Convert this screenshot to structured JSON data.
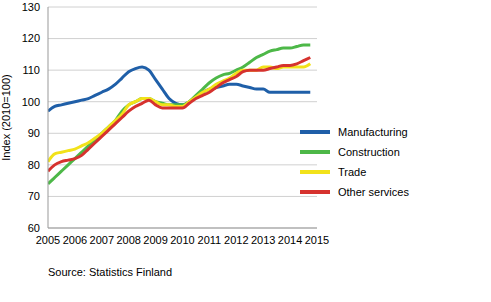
{
  "chart_data": {
    "type": "line",
    "y_label": "Index (2010=100)",
    "source": "Source: Statistics Finland",
    "x": [
      2005,
      2005.25,
      2005.5,
      2005.75,
      2006,
      2006.25,
      2006.5,
      2006.75,
      2007,
      2007.25,
      2007.5,
      2007.75,
      2008,
      2008.25,
      2008.5,
      2008.75,
      2009,
      2009.25,
      2009.5,
      2009.75,
      2010,
      2010.25,
      2010.5,
      2010.75,
      2011,
      2011.25,
      2011.5,
      2011.75,
      2012,
      2012.25,
      2012.5,
      2012.75,
      2013,
      2013.25,
      2013.5,
      2013.75,
      2014,
      2014.25,
      2014.5,
      2014.75
    ],
    "xlim": [
      2005,
      2015
    ],
    "xticks": [
      2005,
      2006,
      2007,
      2008,
      2009,
      2010,
      2011,
      2012,
      2013,
      2014,
      2015
    ],
    "ylim": [
      60,
      130
    ],
    "yticks": [
      60,
      70,
      80,
      90,
      100,
      110,
      120,
      130
    ],
    "grid": true,
    "legend": "right",
    "series": [
      {
        "name": "Manufacturing",
        "color": "#1f5fa8",
        "values": [
          97,
          98.5,
          99,
          99.5,
          100,
          100.5,
          101,
          102,
          103,
          104,
          105.5,
          107.5,
          109.5,
          110.5,
          111,
          110,
          107,
          104,
          101,
          99.5,
          99,
          100,
          101.5,
          103,
          104,
          104.5,
          105,
          105.5,
          105.5,
          105,
          104.5,
          104,
          104,
          103,
          103,
          103,
          103,
          103,
          103,
          103
        ]
      },
      {
        "name": "Construction",
        "color": "#4db848",
        "values": [
          74,
          76,
          78,
          80,
          82,
          84,
          86,
          88,
          90,
          92,
          94,
          97,
          99,
          100,
          101,
          101,
          100,
          99.5,
          99,
          99,
          99,
          100,
          102,
          104,
          106,
          107.5,
          108.5,
          109,
          110,
          111,
          112.5,
          114,
          115,
          116,
          116.5,
          117,
          117,
          117.5,
          118,
          118
        ]
      },
      {
        "name": "Trade",
        "color": "#f2e21a",
        "values": [
          81,
          83.5,
          84,
          84.5,
          85,
          86,
          87,
          88.5,
          90,
          92,
          94,
          96,
          99,
          100,
          101,
          101,
          100,
          99,
          99,
          98.5,
          98.5,
          100,
          101.5,
          103,
          104,
          105.5,
          106.5,
          107.5,
          109,
          110,
          110,
          110,
          111,
          111,
          110.5,
          111,
          111,
          111,
          111,
          112
        ]
      },
      {
        "name": "Other services",
        "color": "#d6322e",
        "values": [
          78,
          80,
          81,
          81.5,
          82,
          83,
          85,
          87,
          89,
          91,
          93,
          95,
          97,
          98.5,
          99.5,
          100.5,
          99,
          98,
          98,
          98,
          98,
          99.5,
          101,
          102,
          103,
          104.5,
          106,
          107,
          108,
          109.5,
          110,
          110,
          110,
          110.5,
          111,
          111.5,
          111.5,
          112,
          113,
          114
        ]
      }
    ]
  }
}
